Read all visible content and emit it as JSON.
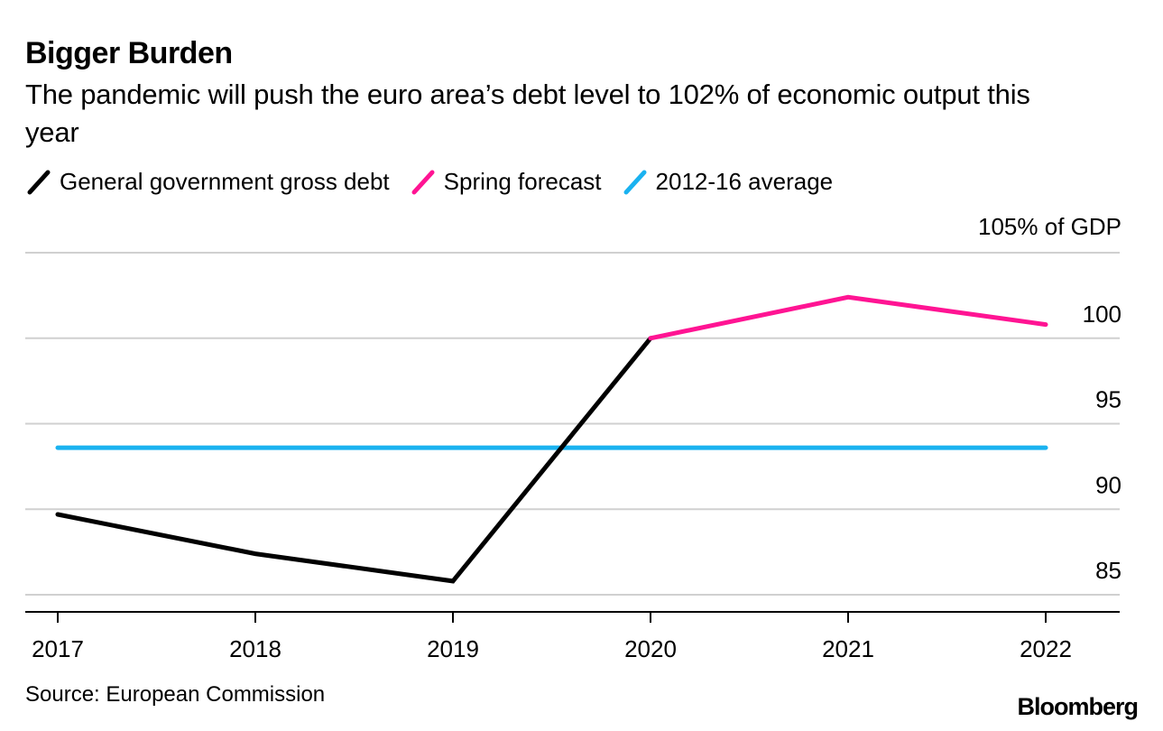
{
  "title": "Bigger Burden",
  "subtitle": "The pandemic will push the euro area’s debt level to 102% of economic output this year",
  "legend": [
    {
      "label": "General government gross debt",
      "color": "#000000"
    },
    {
      "label": "Spring forecast",
      "color": "#ff1493"
    },
    {
      "label": "2012-16 average",
      "color": "#1ab2f0"
    }
  ],
  "source": "Source: European Commission",
  "brand": "Bloomberg",
  "chart_data": {
    "type": "line",
    "unit_label": "105% of GDP",
    "ylim": [
      84,
      105
    ],
    "yticks": [
      85,
      90,
      95,
      100
    ],
    "grid": true,
    "categories": [
      "2017",
      "2018",
      "2019",
      "2020",
      "2021",
      "2022"
    ],
    "series": [
      {
        "name": "General government gross debt",
        "color": "#000000",
        "points": [
          {
            "x": "2017",
            "y": 89.7
          },
          {
            "x": "2018",
            "y": 87.4
          },
          {
            "x": "2019",
            "y": 85.8
          },
          {
            "x": "2020",
            "y": 100.0
          }
        ]
      },
      {
        "name": "Spring forecast",
        "color": "#ff1493",
        "points": [
          {
            "x": "2020",
            "y": 100.0
          },
          {
            "x": "2021",
            "y": 102.4
          },
          {
            "x": "2022",
            "y": 100.8
          }
        ]
      },
      {
        "name": "2012-16 average",
        "color": "#1ab2f0",
        "points": [
          {
            "x": "2017",
            "y": 93.6
          },
          {
            "x": "2022",
            "y": 93.6
          }
        ]
      }
    ]
  }
}
